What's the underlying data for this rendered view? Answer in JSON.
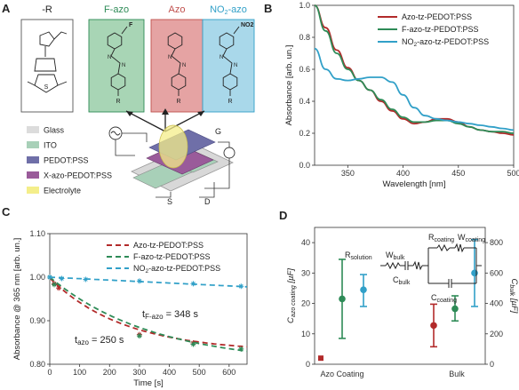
{
  "panels": {
    "A": {
      "letter": "A",
      "headers": [
        "-R",
        "F-azo",
        "Azo",
        "NO2-azo"
      ],
      "header_colors": [
        "#222222",
        "#2e8b57",
        "#c0504d",
        "#31a0c8"
      ],
      "box_fills": [
        "#ffffff",
        "#a8d5b5",
        "#e5a3a3",
        "#a9d8ea"
      ],
      "substituents": [
        "",
        "F",
        "",
        "NO2"
      ],
      "r_label": "R",
      "legend": [
        {
          "label": "Glass",
          "color": "#dcdcdc"
        },
        {
          "label": "ITO",
          "color": "#a8d0b8"
        },
        {
          "label": "PEDOT:PSS",
          "color": "#6f6fa8"
        },
        {
          "label": "X-azo-PEDOT:PSS",
          "color": "#9a5b9a"
        },
        {
          "label": "Electrolyte",
          "color": "#f4ee8a"
        }
      ],
      "device_labels": {
        "G": "G",
        "S": "S",
        "D": "D"
      }
    },
    "B": {
      "letter": "B"
    },
    "C": {
      "letter": "C",
      "annotations": {
        "t_fazo": "t",
        "t_fazo_sub": "F-azo",
        "t_fazo_val": " = 348 s",
        "t_azo": "t",
        "t_azo_sub": "azo",
        "t_azo_val": " = 250 s"
      }
    },
    "D": {
      "letter": "D",
      "circuit": {
        "r_solution": "R",
        "r_solution_sub": "solution",
        "w_bulk": "W",
        "w_bulk_sub": "bulk",
        "c_bulk": "C",
        "c_bulk_sub": "bulk",
        "r_coating": "R",
        "r_coating_sub": "coating",
        "w_coating": "W",
        "w_coating_sub": "coating",
        "c_coating": "C",
        "c_coating_sub": "coating"
      }
    }
  },
  "chart_data": [
    {
      "panel": "B",
      "type": "line",
      "xlabel": "Wavelength [nm]",
      "ylabel": "Absorbance [arb. un.]",
      "xlim": [
        320,
        500
      ],
      "ylim": [
        0,
        1.0
      ],
      "xticks": [
        350,
        400,
        450,
        500
      ],
      "yticks": [
        0.0,
        0.2,
        0.4,
        0.6,
        0.8,
        1.0
      ],
      "legend_position": "top-right",
      "series": [
        {
          "name": "Azo-tz-PEDOT:PSS",
          "color": "#b22a2a",
          "x": [
            320,
            330,
            340,
            350,
            360,
            370,
            380,
            390,
            400,
            410,
            420,
            430,
            440,
            450,
            460,
            470,
            480,
            490,
            500
          ],
          "y": [
            1.0,
            0.86,
            0.72,
            0.61,
            0.53,
            0.47,
            0.4,
            0.34,
            0.29,
            0.26,
            0.27,
            0.29,
            0.29,
            0.27,
            0.24,
            0.22,
            0.21,
            0.2,
            0.19
          ]
        },
        {
          "name": "F-azo-tz-PEDOT:PSS",
          "color": "#2e8b57",
          "x": [
            320,
            330,
            340,
            350,
            360,
            370,
            380,
            390,
            400,
            410,
            420,
            430,
            440,
            450,
            460,
            470,
            480,
            490,
            500
          ],
          "y": [
            1.0,
            0.84,
            0.7,
            0.6,
            0.53,
            0.47,
            0.41,
            0.35,
            0.3,
            0.27,
            0.27,
            0.28,
            0.28,
            0.26,
            0.24,
            0.22,
            0.21,
            0.21,
            0.2
          ]
        },
        {
          "name": "NO2-azo-tz-PEDOT:PSS",
          "color": "#31a0c8",
          "x": [
            320,
            330,
            340,
            350,
            360,
            370,
            380,
            390,
            400,
            410,
            420,
            430,
            440,
            450,
            460,
            470,
            480,
            490,
            500
          ],
          "y": [
            0.73,
            0.6,
            0.54,
            0.53,
            0.54,
            0.55,
            0.55,
            0.52,
            0.44,
            0.36,
            0.31,
            0.29,
            0.28,
            0.27,
            0.26,
            0.25,
            0.24,
            0.23,
            0.22
          ]
        }
      ]
    },
    {
      "panel": "C",
      "type": "scatter",
      "xlabel": "Time [s]",
      "ylabel": "Absorbance @ 365 nm [arb. un.]",
      "xlim": [
        0,
        660
      ],
      "ylim": [
        0.8,
        1.1
      ],
      "xticks": [
        0,
        100,
        200,
        300,
        400,
        500,
        600
      ],
      "yticks": [
        0.8,
        0.9,
        1.0,
        1.1
      ],
      "legend_position": "top-right",
      "series": [
        {
          "name": "Azo-tz-PEDOT:PSS",
          "color": "#b22a2a",
          "points_x": [
            0,
            15,
            30,
            300,
            480
          ],
          "points_y": [
            1.0,
            0.985,
            0.975,
            0.868,
            0.849
          ],
          "fit_tau": 250,
          "fit_a": 0.17,
          "fit_c": 0.828
        },
        {
          "name": "F-azo-tz-PEDOT:PSS",
          "color": "#2e8b57",
          "points_x": [
            0,
            15,
            300,
            480,
            640
          ],
          "points_y": [
            1.0,
            0.983,
            0.865,
            0.846,
            0.835
          ],
          "fit_tau": 348,
          "fit_a": 0.2,
          "fit_c": 0.8
        },
        {
          "name": "NO2-azo-tz-PEDOT:PSS",
          "color": "#31a0c8",
          "points_x": [
            0,
            40,
            120,
            300,
            480,
            640
          ],
          "points_y": [
            1.0,
            0.997,
            0.995,
            0.991,
            0.985,
            0.979
          ],
          "fit_tau": 0,
          "fit_a": 0,
          "fit_c": 0
        }
      ]
    },
    {
      "panel": "D",
      "type": "scatter",
      "xlabel": "",
      "ylabel": "C_azo coating [µF]",
      "ylabel_right": "C_bulk [µF]",
      "categories": [
        "Azo Coating",
        "Bulk"
      ],
      "ylim": [
        0,
        45
      ],
      "yticks": [
        0,
        10,
        20,
        30,
        40
      ],
      "ylim_right": [
        0,
        900
      ],
      "yticks_right": [
        0,
        200,
        400,
        600,
        800
      ],
      "points": [
        {
          "group": "Azo Coating",
          "color": "#b22a2a",
          "value": 2,
          "low": 2,
          "high": 2,
          "axis": "left",
          "marker": "square"
        },
        {
          "group": "Azo Coating",
          "color": "#2e8b57",
          "value": 21.5,
          "low": 8.5,
          "high": 34.5,
          "axis": "left"
        },
        {
          "group": "Azo Coating",
          "color": "#31a0c8",
          "value": 24.5,
          "low": 19,
          "high": 29.5,
          "axis": "left"
        },
        {
          "group": "Bulk",
          "color": "#b22a2a",
          "value": 255,
          "low": 115,
          "high": 395,
          "axis": "right"
        },
        {
          "group": "Bulk",
          "color": "#2e8b57",
          "value": 365,
          "low": 285,
          "high": 450,
          "axis": "right"
        },
        {
          "group": "Bulk",
          "color": "#31a0c8",
          "value": 600,
          "low": 380,
          "high": 820,
          "axis": "right"
        }
      ]
    }
  ]
}
